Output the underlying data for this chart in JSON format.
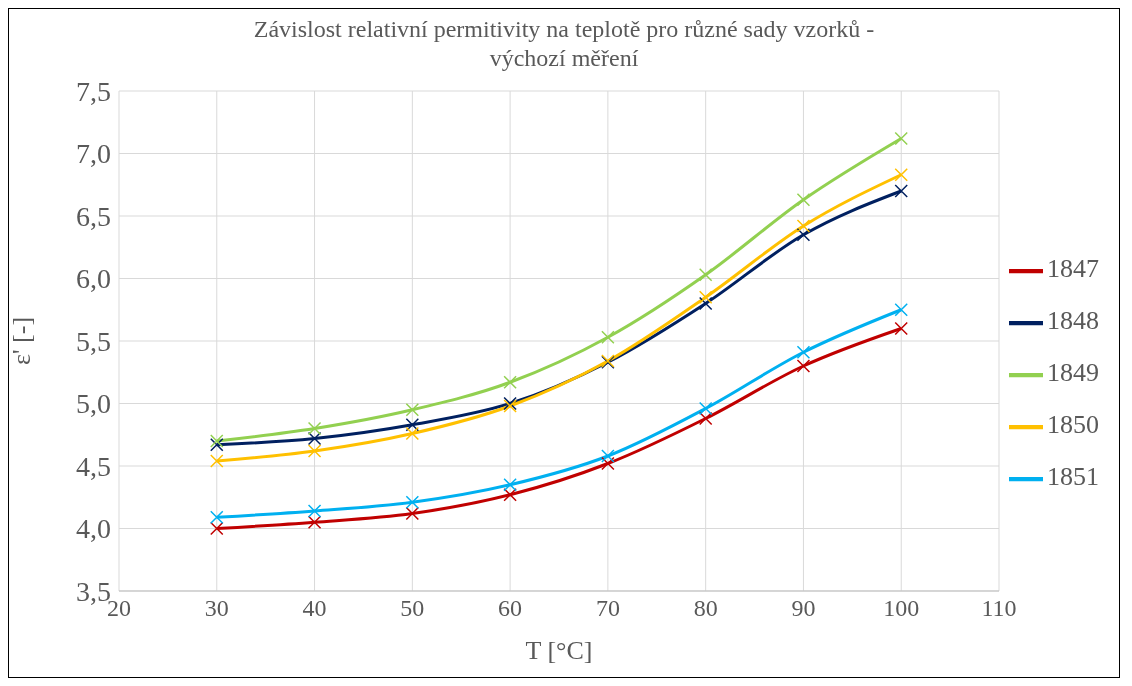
{
  "chart_data": {
    "type": "line",
    "title": "Závislost relativní permitivity na teplotě pro různé sady vzorků - výchozí měření",
    "xlabel": "T [°C]",
    "ylabel": "ε' [-]",
    "x": [
      30,
      40,
      50,
      60,
      70,
      80,
      90,
      100
    ],
    "xlim": [
      20,
      110
    ],
    "xticks": [
      20,
      30,
      40,
      50,
      60,
      70,
      80,
      90,
      100,
      110
    ],
    "ylim": [
      3.5,
      7.5
    ],
    "yticks": [
      {
        "value": 3.5,
        "label": "3,5"
      },
      {
        "value": 4,
        "label": "4,0"
      },
      {
        "value": 4.5,
        "label": "4,5"
      },
      {
        "value": 5,
        "label": "5,0"
      },
      {
        "value": 5.5,
        "label": "5,5"
      },
      {
        "value": 6,
        "label": "6,0"
      },
      {
        "value": 6.5,
        "label": "6,5"
      },
      {
        "value": 7,
        "label": "7,0"
      },
      {
        "value": 7.5,
        "label": "7,5"
      }
    ],
    "grid": true,
    "legend": "right",
    "marker": "cross",
    "line_style": "solid",
    "series": [
      {
        "name": "1847",
        "color": "#c00000",
        "values": [
          4.0,
          4.05,
          4.12,
          4.27,
          4.52,
          4.88,
          5.3,
          5.6
        ]
      },
      {
        "name": "1848",
        "color": "#002060",
        "values": [
          4.67,
          4.72,
          4.83,
          5.0,
          5.33,
          5.8,
          6.35,
          6.7
        ]
      },
      {
        "name": "1849",
        "color": "#92d050",
        "values": [
          4.7,
          4.8,
          4.95,
          5.17,
          5.53,
          6.03,
          6.63,
          7.12
        ]
      },
      {
        "name": "1850",
        "color": "#ffc000",
        "values": [
          4.54,
          4.62,
          4.76,
          4.98,
          5.34,
          5.85,
          6.42,
          6.83
        ]
      },
      {
        "name": "1851",
        "color": "#00b0f0",
        "values": [
          4.09,
          4.14,
          4.21,
          4.35,
          4.58,
          4.96,
          5.41,
          5.75
        ]
      }
    ]
  }
}
